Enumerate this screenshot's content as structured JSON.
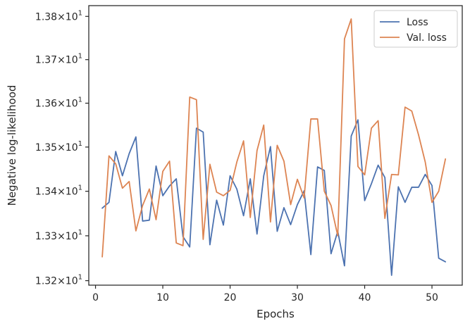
{
  "chart_data": {
    "type": "line",
    "xlabel": "Epochs",
    "ylabel": "Negative log-likelihood",
    "xlim": [
      -1,
      54.5
    ],
    "ylim": [
      13.19,
      13.825
    ],
    "yscale": "log",
    "xticks": [
      0,
      10,
      20,
      30,
      40,
      50
    ],
    "xtick_labels": [
      "0",
      "10",
      "20",
      "30",
      "40",
      "50"
    ],
    "yticks": [
      13.2,
      13.3,
      13.4,
      13.5,
      13.6,
      13.7,
      13.8
    ],
    "ytick_labels": [
      {
        "mantissa": "1.32",
        "exp": "1"
      },
      {
        "mantissa": "1.33",
        "exp": "1"
      },
      {
        "mantissa": "1.34",
        "exp": "1"
      },
      {
        "mantissa": "1.35",
        "exp": "1"
      },
      {
        "mantissa": "1.36",
        "exp": "1"
      },
      {
        "mantissa": "1.37",
        "exp": "1"
      },
      {
        "mantissa": "1.38",
        "exp": "1"
      }
    ],
    "ytick_times": "×",
    "grid": false,
    "legend_position": "top-right",
    "x": [
      1,
      2,
      3,
      4,
      5,
      6,
      7,
      8,
      9,
      10,
      11,
      12,
      13,
      14,
      15,
      16,
      17,
      18,
      19,
      20,
      21,
      22,
      23,
      24,
      25,
      26,
      27,
      28,
      29,
      30,
      31,
      32,
      33,
      34,
      35,
      36,
      37,
      38,
      39,
      40,
      41,
      42,
      43,
      44,
      45,
      46,
      47,
      48,
      49,
      50,
      51,
      52
    ],
    "series": [
      {
        "name": "Loss",
        "color": "#4c72b0",
        "values": [
          13.362,
          13.375,
          13.49,
          13.435,
          13.485,
          13.523,
          13.333,
          13.335,
          13.457,
          13.39,
          13.412,
          13.428,
          13.298,
          13.275,
          13.543,
          13.534,
          13.28,
          13.38,
          13.324,
          13.435,
          13.405,
          13.345,
          13.428,
          13.304,
          13.435,
          13.501,
          13.31,
          13.363,
          13.325,
          13.37,
          13.401,
          13.258,
          13.455,
          13.447,
          13.26,
          13.31,
          13.233,
          13.525,
          13.562,
          13.379,
          13.417,
          13.459,
          13.431,
          13.212,
          13.41,
          13.375,
          13.409,
          13.409,
          13.438,
          13.413,
          13.25,
          13.242
        ]
      },
      {
        "name": "Val. loss",
        "color": "#dd8452",
        "values": [
          13.253,
          13.48,
          13.462,
          13.407,
          13.422,
          13.311,
          13.368,
          13.405,
          13.336,
          13.445,
          13.468,
          13.284,
          13.278,
          13.614,
          13.608,
          13.292,
          13.461,
          13.398,
          13.39,
          13.402,
          13.466,
          13.514,
          13.341,
          13.492,
          13.55,
          13.331,
          13.504,
          13.468,
          13.37,
          13.427,
          13.385,
          13.564,
          13.564,
          13.4,
          13.368,
          13.3,
          13.748,
          13.794,
          13.456,
          13.437,
          13.543,
          13.56,
          13.339,
          13.438,
          13.437,
          13.591,
          13.582,
          13.528,
          13.466,
          13.375,
          13.4,
          13.473
        ]
      }
    ]
  }
}
